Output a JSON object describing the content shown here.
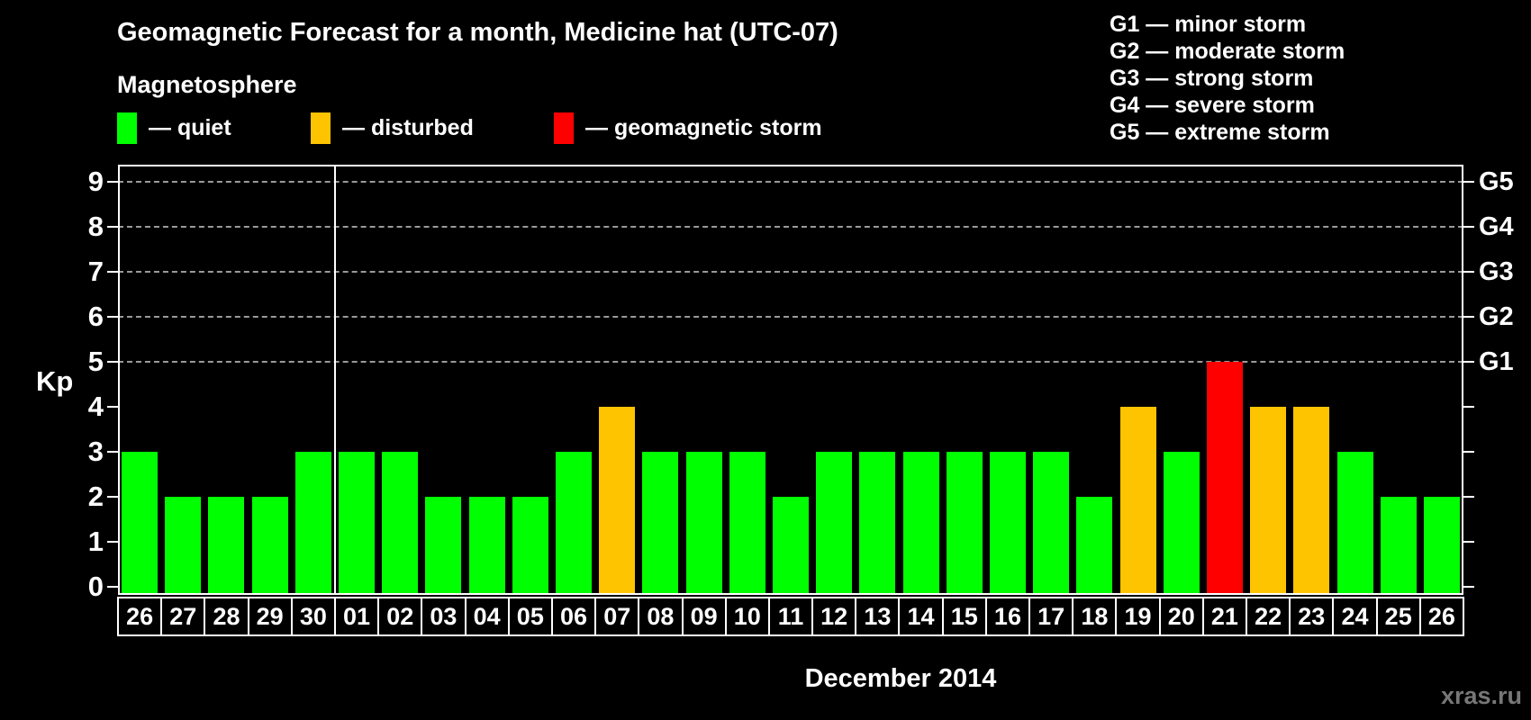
{
  "header": {
    "title": "Geomagnetic Forecast for a month, Medicine hat (UTC-07)",
    "subtitle": "Magnetosphere",
    "legend": [
      {
        "status": "quiet",
        "label": "— quiet",
        "color": "#00ff00"
      },
      {
        "status": "disturbed",
        "label": "— disturbed",
        "color": "#ffc400"
      },
      {
        "status": "storm",
        "label": "— geomagnetic storm",
        "color": "#ff0000"
      }
    ],
    "g_scale_legend": [
      "G1 — minor storm",
      "G2 — moderate storm",
      "G3 — strong storm",
      "G4 — severe storm",
      "G5 — extreme storm"
    ]
  },
  "chart_data": {
    "type": "bar",
    "title": "Geomagnetic Forecast for a month, Medicine hat (UTC-07)",
    "xlabel": "December 2014",
    "ylabel": "Kp",
    "ylim": [
      0,
      9
    ],
    "yticks": [
      0,
      1,
      2,
      3,
      4,
      5,
      6,
      7,
      8,
      9
    ],
    "gridlines_at": [
      5,
      6,
      7,
      8,
      9
    ],
    "grid": "dashed horizontal at storm levels only",
    "right_axis": [
      {
        "label": "G5",
        "kp": 9
      },
      {
        "label": "G4",
        "kp": 8
      },
      {
        "label": "G3",
        "kp": 7
      },
      {
        "label": "G2",
        "kp": 6
      },
      {
        "label": "G1",
        "kp": 5
      }
    ],
    "categories": [
      "26",
      "27",
      "28",
      "29",
      "30",
      "01",
      "02",
      "03",
      "04",
      "05",
      "06",
      "07",
      "08",
      "09",
      "10",
      "11",
      "12",
      "13",
      "14",
      "15",
      "16",
      "17",
      "18",
      "19",
      "20",
      "21",
      "22",
      "23",
      "24",
      "25",
      "26"
    ],
    "values": [
      3,
      2,
      2,
      2,
      3,
      3,
      3,
      2,
      2,
      2,
      3,
      4,
      3,
      3,
      3,
      2,
      3,
      3,
      3,
      3,
      3,
      3,
      2,
      4,
      3,
      5,
      4,
      4,
      3,
      2,
      2
    ],
    "statuses": [
      "quiet",
      "quiet",
      "quiet",
      "quiet",
      "quiet",
      "quiet",
      "quiet",
      "quiet",
      "quiet",
      "quiet",
      "quiet",
      "disturbed",
      "quiet",
      "quiet",
      "quiet",
      "quiet",
      "quiet",
      "quiet",
      "quiet",
      "quiet",
      "quiet",
      "quiet",
      "quiet",
      "disturbed",
      "quiet",
      "storm",
      "disturbed",
      "disturbed",
      "quiet",
      "quiet",
      "quiet"
    ],
    "color_map": {
      "quiet": "#00ff00",
      "disturbed": "#ffc400",
      "storm": "#ff0000"
    },
    "month_boundary_after_index": 4,
    "legend_position": "top-left"
  },
  "footer": {
    "xaxis_title": "December 2014",
    "watermark": "xras.ru"
  }
}
